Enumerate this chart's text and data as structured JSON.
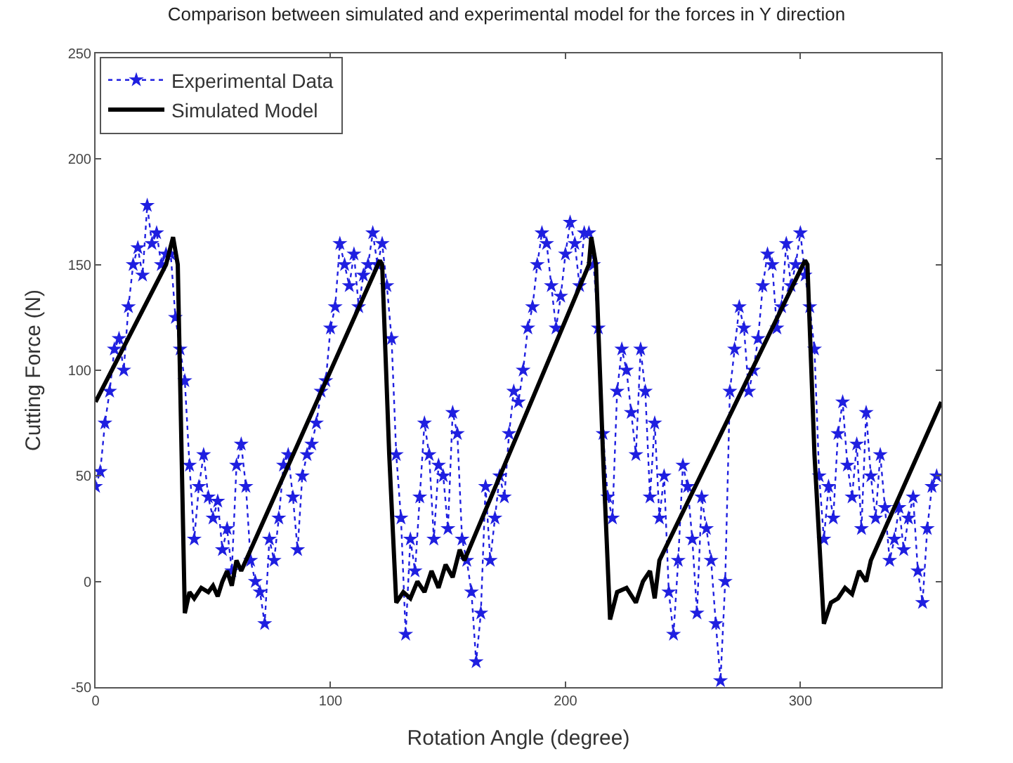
{
  "chart_data": {
    "type": "line",
    "title": "Comparison between simulated and experimental model for the forces in Y direction",
    "xlabel": "Rotation Angle (degree)",
    "ylabel": "Cutting Force (N)",
    "xlim": [
      0,
      360
    ],
    "xticks": [
      0,
      100,
      200,
      300
    ],
    "ylim": [
      -50,
      250
    ],
    "yticks": [
      -50,
      0,
      50,
      100,
      150,
      200,
      250
    ],
    "legend": "top left",
    "series": [
      {
        "name": "Experimental Data",
        "color": "#1f1fe0",
        "marker": "star",
        "line_style": "dotted",
        "x": [
          0,
          2,
          4,
          6,
          8,
          10,
          12,
          14,
          16,
          18,
          20,
          22,
          24,
          26,
          28,
          30,
          32,
          34,
          36,
          38,
          40,
          42,
          44,
          46,
          48,
          50,
          52,
          54,
          56,
          58,
          60,
          62,
          64,
          66,
          68,
          70,
          72,
          74,
          76,
          78,
          80,
          82,
          84,
          86,
          88,
          90,
          92,
          94,
          96,
          98,
          100,
          102,
          104,
          106,
          108,
          110,
          112,
          114,
          116,
          118,
          120,
          122,
          124,
          126,
          128,
          130,
          132,
          134,
          136,
          138,
          140,
          142,
          144,
          146,
          148,
          150,
          152,
          154,
          156,
          158,
          160,
          162,
          164,
          166,
          168,
          170,
          172,
          174,
          176,
          178,
          180,
          182,
          184,
          186,
          188,
          190,
          192,
          194,
          196,
          198,
          200,
          202,
          204,
          206,
          208,
          210,
          212,
          214,
          216,
          218,
          220,
          222,
          224,
          226,
          228,
          230,
          232,
          234,
          236,
          238,
          240,
          242,
          244,
          246,
          248,
          250,
          252,
          254,
          256,
          258,
          260,
          262,
          264,
          266,
          268,
          270,
          272,
          274,
          276,
          278,
          280,
          282,
          284,
          286,
          288,
          290,
          292,
          294,
          296,
          298,
          300,
          302,
          304,
          306,
          308,
          310,
          312,
          314,
          316,
          318,
          320,
          322,
          324,
          326,
          328,
          330,
          332,
          334,
          336,
          338,
          340,
          342,
          344,
          346,
          348,
          350,
          352,
          354,
          356,
          358
        ],
        "values": [
          45,
          52,
          75,
          90,
          110,
          115,
          100,
          130,
          150,
          158,
          145,
          178,
          160,
          165,
          150,
          155,
          155,
          125,
          110,
          95,
          55,
          20,
          45,
          60,
          40,
          30,
          38,
          15,
          25,
          5,
          55,
          65,
          45,
          10,
          0,
          -5,
          -20,
          20,
          10,
          30,
          55,
          60,
          40,
          15,
          50,
          60,
          65,
          75,
          90,
          95,
          120,
          130,
          160,
          150,
          140,
          155,
          130,
          145,
          150,
          165,
          150,
          160,
          140,
          115,
          60,
          30,
          -25,
          20,
          5,
          40,
          75,
          60,
          20,
          55,
          50,
          25,
          80,
          70,
          20,
          10,
          -5,
          -38,
          -15,
          45,
          10,
          30,
          50,
          40,
          70,
          90,
          85,
          100,
          120,
          130,
          150,
          165,
          160,
          140,
          120,
          135,
          155,
          170,
          160,
          140,
          165,
          165,
          150,
          120,
          70,
          40,
          30,
          90,
          110,
          100,
          80,
          60,
          110,
          90,
          40,
          75,
          30,
          50,
          -5,
          -25,
          10,
          55,
          45,
          20,
          -15,
          40,
          25,
          10,
          -20,
          -47,
          0,
          90,
          110,
          130,
          120,
          90,
          100,
          115,
          140,
          155,
          150,
          120,
          130,
          160,
          140,
          150,
          165,
          145,
          130,
          110,
          50,
          20,
          45,
          30,
          70,
          85,
          55,
          40,
          65,
          25,
          80,
          50,
          30,
          60,
          35,
          10,
          20,
          35,
          15,
          30,
          40,
          5,
          -10,
          25,
          45,
          50
        ]
      },
      {
        "name": "Simulated Model",
        "color": "#000000",
        "marker": "none",
        "line_style": "solid",
        "x": [
          0,
          30,
          33,
          35,
          38,
          40,
          42,
          45,
          48,
          50,
          52,
          54,
          56,
          58,
          60,
          62,
          121,
          122,
          125,
          128,
          131,
          134,
          137,
          140,
          143,
          146,
          149,
          152,
          155,
          157,
          210,
          211,
          213,
          216,
          219,
          222,
          226,
          230,
          233,
          236,
          238,
          240,
          302,
          303,
          306,
          310,
          313,
          316,
          319,
          322,
          325,
          328,
          330,
          360
        ],
        "values": [
          85,
          150,
          163,
          150,
          -15,
          -5,
          -8,
          -3,
          -5,
          -2,
          -7,
          0,
          5,
          -2,
          10,
          5,
          152,
          150,
          60,
          -10,
          -5,
          -8,
          0,
          -5,
          5,
          -3,
          8,
          2,
          15,
          10,
          150,
          163,
          150,
          60,
          -18,
          -5,
          -3,
          -10,
          0,
          5,
          -8,
          10,
          152,
          150,
          60,
          -20,
          -10,
          -8,
          -3,
          -6,
          5,
          0,
          10,
          85
        ]
      }
    ]
  }
}
